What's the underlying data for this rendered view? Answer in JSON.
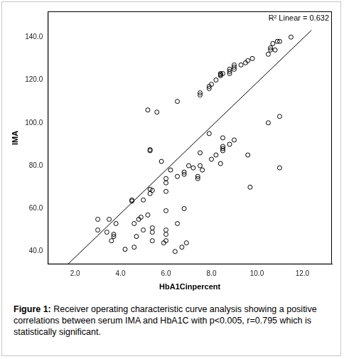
{
  "chart_data": {
    "type": "scatter",
    "x_label": "HbA1Cinpercent",
    "y_label": "IMA",
    "xlim": [
      0.8,
      13.3
    ],
    "ylim": [
      34,
      152
    ],
    "xticks": [
      {
        "value": 2,
        "label": "2.0"
      },
      {
        "value": 4,
        "label": "4.0"
      },
      {
        "value": 6,
        "label": "6.0"
      },
      {
        "value": 8,
        "label": "8.0"
      },
      {
        "value": 10,
        "label": "10.0"
      },
      {
        "value": 12,
        "label": "12.0"
      }
    ],
    "yticks": [
      {
        "value": 40,
        "label": "40.0"
      },
      {
        "value": 60,
        "label": "60.0"
      },
      {
        "value": 80,
        "label": "80.0"
      },
      {
        "value": 100,
        "label": "100.0"
      },
      {
        "value": 120,
        "label": "120.0"
      },
      {
        "value": 140,
        "label": "140.0"
      }
    ],
    "grid": false,
    "marker": "circle",
    "color": "#000000",
    "x": [
      7.5,
      7.5,
      7.9,
      7.9,
      8.0,
      8.2,
      8.4,
      8.4,
      8.5,
      8.4,
      8.8,
      8.8,
      8.8,
      9.0,
      9.0,
      9.0,
      9.3,
      9.5,
      9.6,
      9.8,
      10.5,
      10.6,
      10.6,
      10.7,
      10.9,
      11.0,
      11.5,
      10.8,
      5.2,
      5.6,
      6.5,
      7.9,
      5.3,
      5.3,
      5.8,
      6.0,
      6.0,
      6.0,
      5.3,
      5.3,
      5.4,
      5.0,
      4.5,
      4.5,
      6.2,
      6.8,
      6.8,
      6.5,
      7.0,
      7.2,
      7.5,
      7.6,
      7.4,
      7.4,
      8.0,
      8.2,
      8.4,
      8.5,
      8.5,
      8.5,
      8.5,
      8.8,
      9.0,
      9.6,
      9.7,
      10.5,
      11.0,
      11.0,
      7.5,
      3.0,
      3.0,
      3.4,
      3.5,
      3.6,
      3.7,
      3.8,
      3.7,
      4.2,
      4.6,
      4.8,
      4.9,
      4.7,
      4.6,
      5.0,
      5.2,
      5.4,
      5.4,
      5.4,
      6.0,
      6.0,
      6.0,
      6.0,
      5.9,
      6.4,
      6.5,
      6.7,
      6.8,
      6.9
    ],
    "values": [
      113,
      114,
      116,
      117,
      118,
      120,
      122,
      123,
      123,
      122.5,
      123,
      124,
      125,
      125,
      126,
      127,
      127,
      128,
      129,
      130,
      132,
      134,
      135,
      137,
      138,
      138,
      140,
      134,
      106,
      105,
      110,
      95,
      87,
      87.5,
      82,
      74,
      72,
      68,
      67,
      69,
      68.5,
      64,
      64,
      63.5,
      78,
      77,
      76,
      75,
      80,
      79,
      80,
      78,
      75,
      74,
      83,
      85,
      81,
      87,
      88,
      89,
      93,
      90,
      92,
      85,
      70,
      100,
      103,
      79,
      86,
      55,
      50,
      49,
      55,
      45,
      48,
      53,
      47,
      41,
      53,
      55,
      56,
      47,
      42,
      50,
      57,
      51,
      49,
      45,
      59,
      50,
      48,
      45,
      44,
      40,
      53,
      42,
      60,
      44
    ],
    "fit_line": {
      "x": [
        1.7,
        12.4
      ],
      "values": [
        34.2,
        143.2
      ],
      "label": "R² Linear = 0.632",
      "color": "#000000"
    }
  },
  "caption": {
    "label": "Figure 1:",
    "text": "Receiver operating characteristic curve analysis showing a positive correlations between serum IMA and HbA1C with p<0.005, r=0.795 which is statistically significant."
  }
}
